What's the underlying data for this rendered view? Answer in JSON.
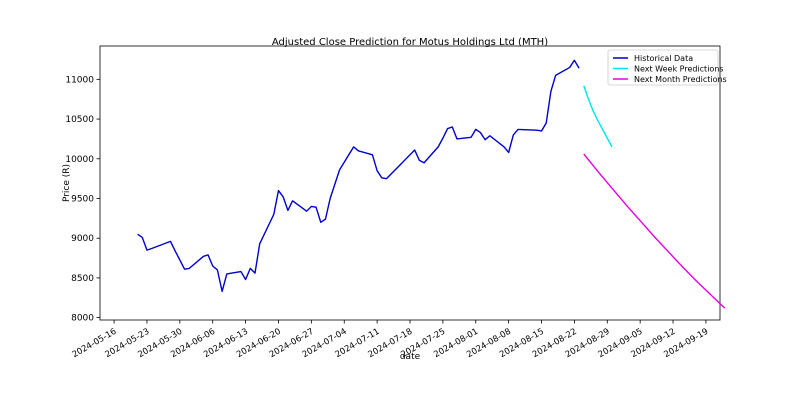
{
  "chart_data": {
    "type": "line",
    "title": "Adjusted Close Prediction for Motus Holdings Ltd (MTH)",
    "xlabel": "date",
    "ylabel": "Price (R)",
    "x_ticks": [
      "2024-05-16",
      "2024-05-23",
      "2024-05-30",
      "2024-06-06",
      "2024-06-13",
      "2024-06-20",
      "2024-06-27",
      "2024-07-04",
      "2024-07-11",
      "2024-07-18",
      "2024-07-25",
      "2024-08-01",
      "2024-08-08",
      "2024-08-15",
      "2024-08-22",
      "2024-08-29",
      "2024-09-05",
      "2024-09-12",
      "2024-09-19"
    ],
    "y_ticks": [
      8000,
      8500,
      9000,
      9500,
      10000,
      10500,
      11000
    ],
    "xlim": [
      "2024-05-13",
      "2024-09-22"
    ],
    "ylim": [
      7970,
      11420
    ],
    "grid": false,
    "legend_position": "top-right",
    "series": [
      {
        "name": "Historical Data",
        "color": "#0000cc",
        "points": [
          [
            "2024-05-21",
            9050
          ],
          [
            "2024-05-22",
            9010
          ],
          [
            "2024-05-23",
            8850
          ],
          [
            "2024-05-24",
            8870
          ],
          [
            "2024-05-28",
            8960
          ],
          [
            "2024-05-29",
            8840
          ],
          [
            "2024-05-31",
            8610
          ],
          [
            "2024-06-01",
            8620
          ],
          [
            "2024-06-04",
            8770
          ],
          [
            "2024-06-05",
            8790
          ],
          [
            "2024-06-06",
            8650
          ],
          [
            "2024-06-07",
            8600
          ],
          [
            "2024-06-08",
            8330
          ],
          [
            "2024-06-09",
            8550
          ],
          [
            "2024-06-12",
            8580
          ],
          [
            "2024-06-13",
            8480
          ],
          [
            "2024-06-14",
            8620
          ],
          [
            "2024-06-15",
            8560
          ],
          [
            "2024-06-16",
            8930
          ],
          [
            "2024-06-19",
            9300
          ],
          [
            "2024-06-20",
            9600
          ],
          [
            "2024-06-21",
            9520
          ],
          [
            "2024-06-22",
            9350
          ],
          [
            "2024-06-23",
            9470
          ],
          [
            "2024-06-26",
            9340
          ],
          [
            "2024-06-27",
            9400
          ],
          [
            "2024-06-28",
            9390
          ],
          [
            "2024-06-29",
            9200
          ],
          [
            "2024-06-30",
            9240
          ],
          [
            "2024-07-01",
            9500
          ],
          [
            "2024-07-03",
            9860
          ],
          [
            "2024-07-06",
            10150
          ],
          [
            "2024-07-07",
            10100
          ],
          [
            "2024-07-10",
            10050
          ],
          [
            "2024-07-11",
            9850
          ],
          [
            "2024-07-12",
            9760
          ],
          [
            "2024-07-13",
            9750
          ],
          [
            "2024-07-16",
            9930
          ],
          [
            "2024-07-17",
            9990
          ],
          [
            "2024-07-19",
            10110
          ],
          [
            "2024-07-20",
            9980
          ],
          [
            "2024-07-21",
            9950
          ],
          [
            "2024-07-24",
            10150
          ],
          [
            "2024-07-25",
            10260
          ],
          [
            "2024-07-26",
            10380
          ],
          [
            "2024-07-27",
            10400
          ],
          [
            "2024-07-28",
            10250
          ],
          [
            "2024-07-31",
            10270
          ],
          [
            "2024-08-01",
            10370
          ],
          [
            "2024-08-02",
            10330
          ],
          [
            "2024-08-03",
            10240
          ],
          [
            "2024-08-04",
            10290
          ],
          [
            "2024-08-07",
            10150
          ],
          [
            "2024-08-08",
            10080
          ],
          [
            "2024-08-09",
            10300
          ],
          [
            "2024-08-10",
            10370
          ],
          [
            "2024-08-14",
            10360
          ],
          [
            "2024-08-15",
            10350
          ],
          [
            "2024-08-16",
            10450
          ],
          [
            "2024-08-17",
            10850
          ],
          [
            "2024-08-18",
            11050
          ],
          [
            "2024-08-21",
            11150
          ],
          [
            "2024-08-22",
            11240
          ],
          [
            "2024-08-23",
            11140
          ]
        ]
      },
      {
        "name": "Next Week Predictions",
        "color": "#00e5ee",
        "points": [
          [
            "2024-08-24",
            10920
          ],
          [
            "2024-08-25",
            10750
          ],
          [
            "2024-08-26",
            10600
          ],
          [
            "2024-08-27",
            10480
          ],
          [
            "2024-08-28",
            10370
          ],
          [
            "2024-08-29",
            10260
          ],
          [
            "2024-08-30",
            10150
          ]
        ]
      },
      {
        "name": "Next Month Predictions",
        "color": "#e600e6",
        "points": [
          [
            "2024-08-24",
            10060
          ],
          [
            "2024-08-27",
            9840
          ],
          [
            "2024-08-30",
            9630
          ],
          [
            "2024-09-02",
            9420
          ],
          [
            "2024-09-05",
            9220
          ],
          [
            "2024-09-08",
            9020
          ],
          [
            "2024-09-11",
            8830
          ],
          [
            "2024-09-14",
            8640
          ],
          [
            "2024-09-17",
            8460
          ],
          [
            "2024-09-20",
            8290
          ],
          [
            "2024-09-23",
            8120
          ]
        ]
      }
    ]
  }
}
